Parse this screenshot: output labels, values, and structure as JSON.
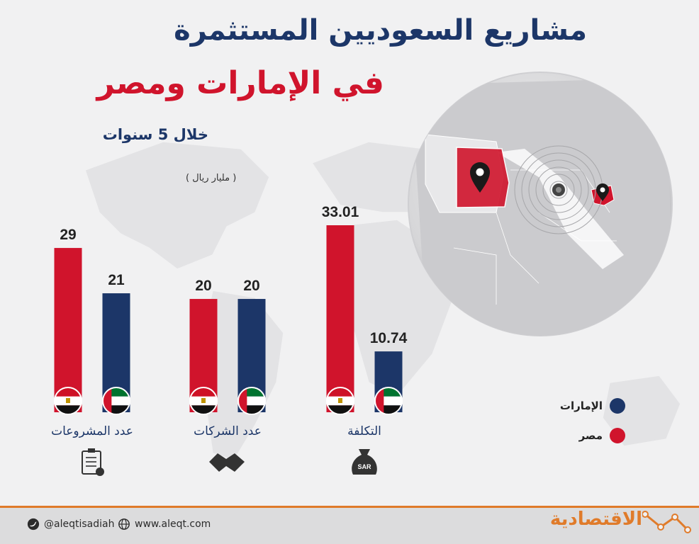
{
  "title_line1": "مشاريع السعوديين المستثمرة",
  "title_line2": "في الإمارات ومصر",
  "subtitle": "خلال 5 سنوات",
  "unit_note": "( مليار ريال )",
  "legend": [
    {
      "label": "الإمارات",
      "color": "#1c3668"
    },
    {
      "label": "مصر",
      "color": "#d0142c"
    }
  ],
  "colors": {
    "uae": "#1c3668",
    "egypt": "#d0142c"
  },
  "chart_data": {
    "type": "bar",
    "categories": [
      "عدد المشروعات",
      "عدد الشركات",
      "التكلفة"
    ],
    "category_icons": [
      "clipboard-icon",
      "handshake-icon",
      "money-bag-icon"
    ],
    "money_bag_text": "SAR",
    "series": [
      {
        "name": "مصر",
        "values": [
          29,
          20,
          33.01
        ],
        "labels": [
          "29",
          "20",
          "33.01"
        ]
      },
      {
        "name": "الإمارات",
        "values": [
          21,
          20,
          10.74
        ],
        "labels": [
          "21",
          "20",
          "10.74"
        ]
      }
    ]
  },
  "footer": {
    "twitter": "@aleqtisadiah",
    "website": "www.aleqt.com",
    "brand": "الاقتصادية"
  }
}
